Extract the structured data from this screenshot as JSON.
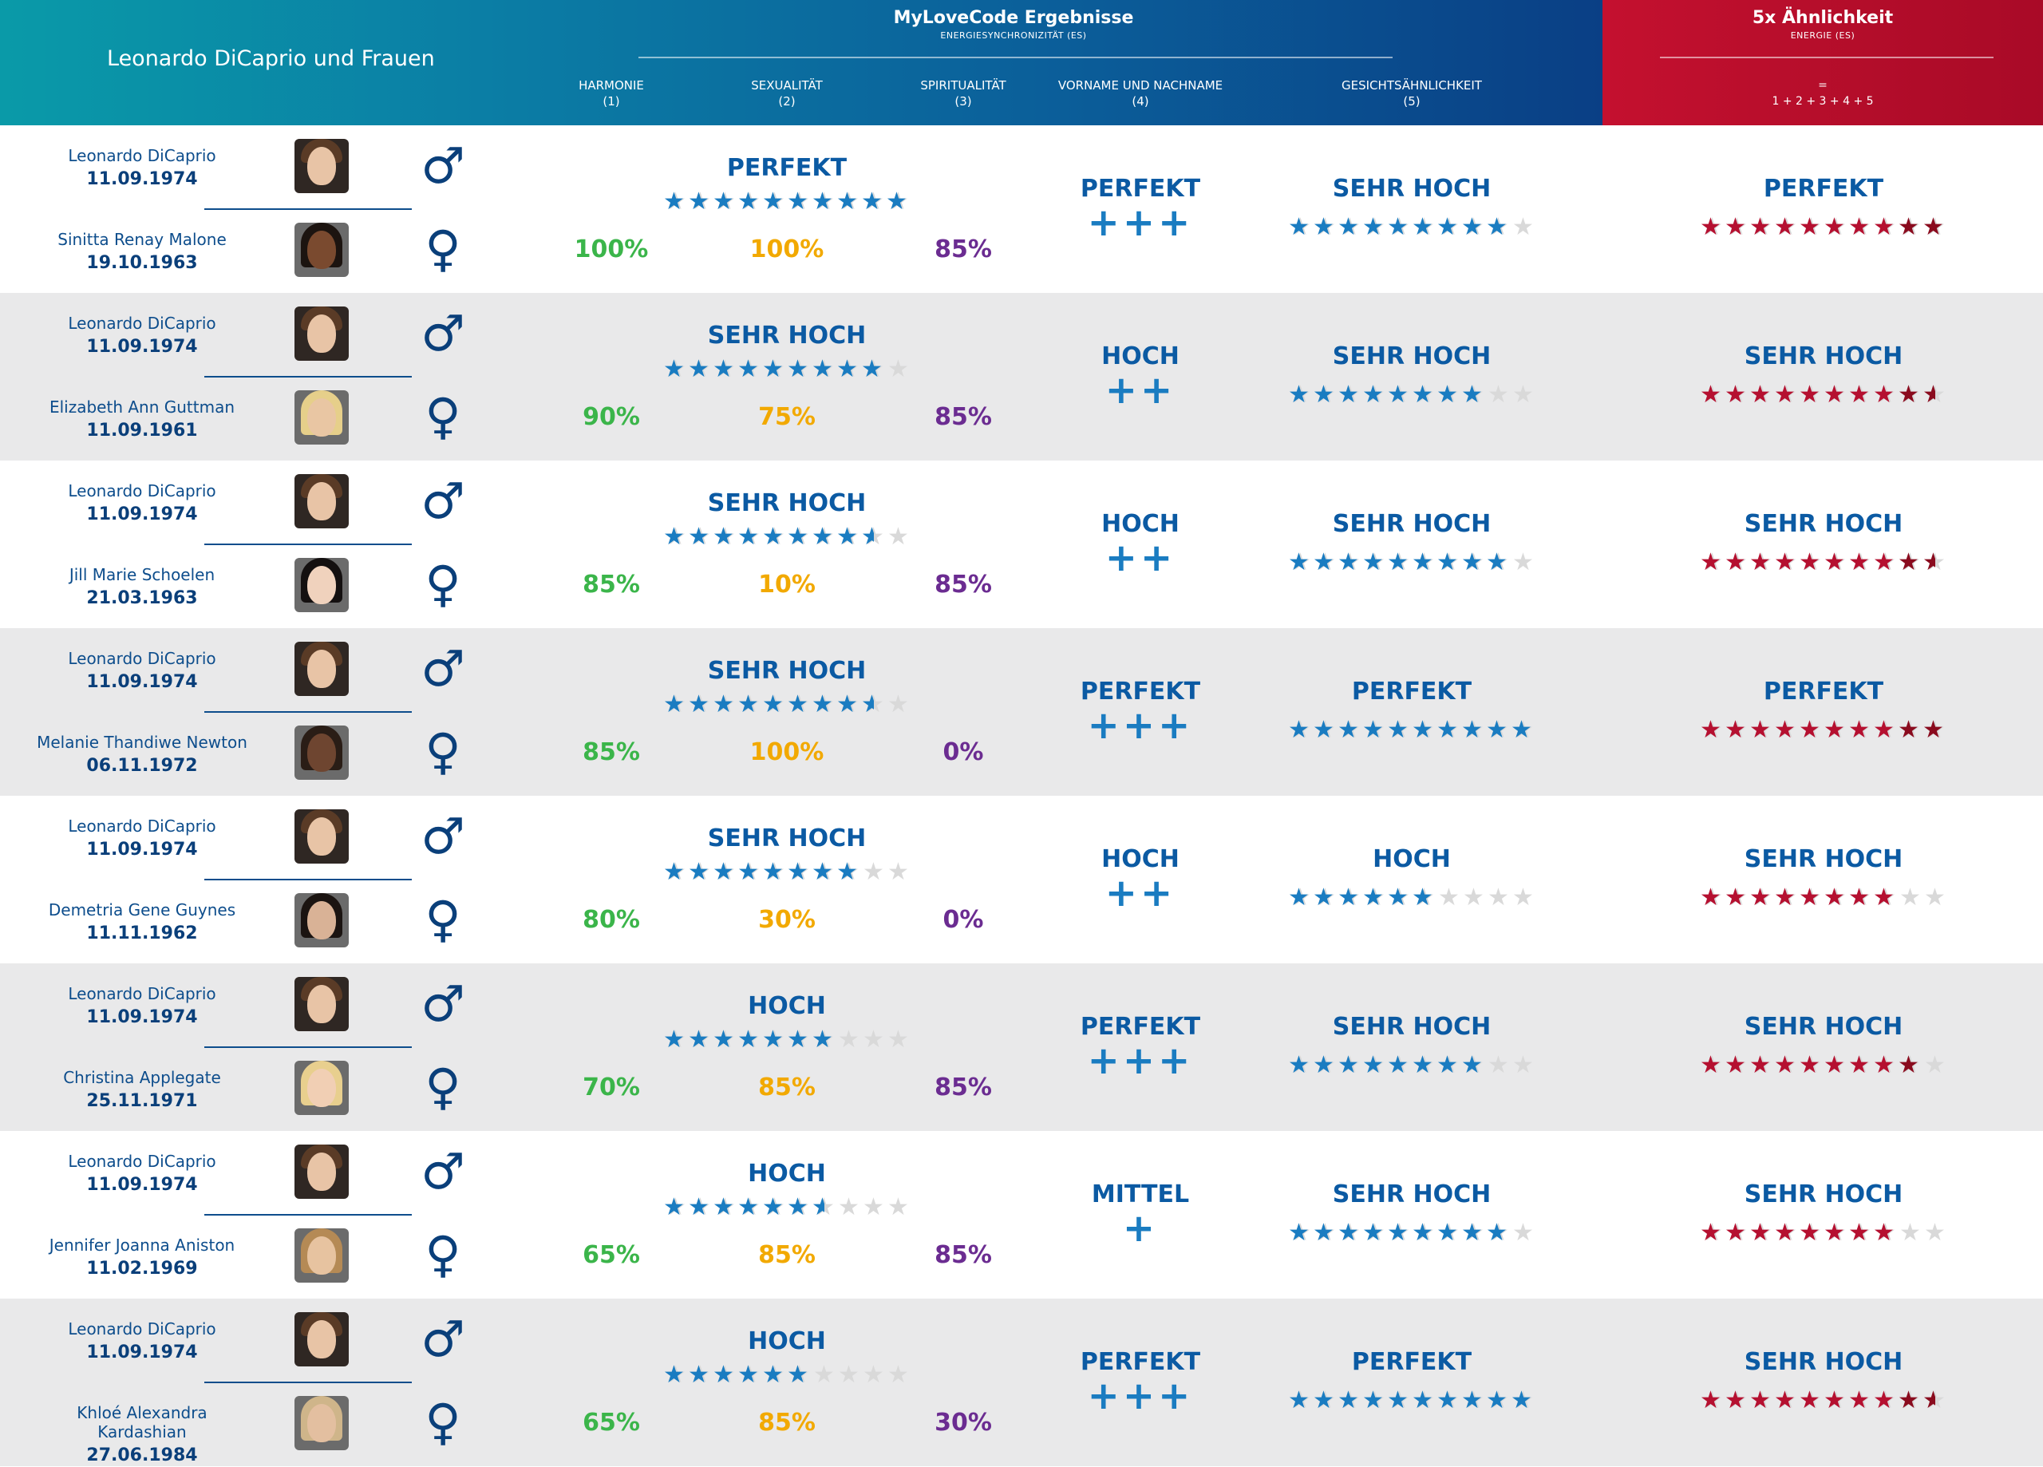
{
  "header": {
    "title": "Leonardo DiCaprio und Frauen",
    "results_title": "MyLoveCode Ergebnisse",
    "results_sub": "ENERGIESYNCHRONIZITÄT (ES)",
    "columns": [
      {
        "label": "HARMONIE",
        "num": "(1)"
      },
      {
        "label": "SEXUALITÄT",
        "num": "(2)"
      },
      {
        "label": "SPIRITUALITÄT",
        "num": "(3)"
      },
      {
        "label": "VORNAME UND NACHNAME",
        "num": "(4)"
      },
      {
        "label": "GESICHTSÄHNLICHKEIT",
        "num": "(5)"
      }
    ],
    "energy_title": "5x Ähnlichkeit",
    "energy_sub": "ENERGIE (ES)",
    "energy_eq": "=",
    "energy_formula": "1 + 2 + 3 + 4 + 5"
  },
  "colors": {
    "blue_star": "#1a7cc1",
    "red_star": "#b51030",
    "empty_star": "#d9d9d9",
    "harmony": "#3bb54a",
    "sexuality": "#f2a900",
    "spirituality": "#6b2c91",
    "header_blue": "#0b5f9a",
    "header_red": "#c4102f"
  },
  "icons": {
    "male": "male-symbol-icon",
    "female": "female-symbol-icon"
  },
  "chart_data": {
    "type": "table",
    "stars_max": 10,
    "rows": [
      {
        "man": "Leonardo DiCaprio",
        "man_date": "11.09.1974",
        "woman": "Sinitta Renay Malone",
        "woman_date": "19.10.1963",
        "es_rating": "PERFEKT",
        "es_stars": 10,
        "harmony": "100%",
        "sexuality": "100%",
        "spirituality": "85%",
        "name_rating": "PERFEKT",
        "name_plus": "+++",
        "face_rating": "SEHR HOCH",
        "face_stars": 9,
        "energy_rating": "PERFEKT",
        "energy_stars": 10
      },
      {
        "man": "Leonardo DiCaprio",
        "man_date": "11.09.1974",
        "woman": "Elizabeth Ann Guttman",
        "woman_date": "11.09.1961",
        "es_rating": "SEHR HOCH",
        "es_stars": 9,
        "harmony": "90%",
        "sexuality": "75%",
        "spirituality": "85%",
        "name_rating": "HOCH",
        "name_plus": "++",
        "face_rating": "SEHR HOCH",
        "face_stars": 8,
        "energy_rating": "SEHR HOCH",
        "energy_stars": 9.5
      },
      {
        "man": "Leonardo DiCaprio",
        "man_date": "11.09.1974",
        "woman": "Jill Marie Schoelen",
        "woman_date": "21.03.1963",
        "es_rating": "SEHR HOCH",
        "es_stars": 8.5,
        "harmony": "85%",
        "sexuality": "10%",
        "spirituality": "85%",
        "name_rating": "HOCH",
        "name_plus": "++",
        "face_rating": "SEHR HOCH",
        "face_stars": 9,
        "energy_rating": "SEHR HOCH",
        "energy_stars": 9.5
      },
      {
        "man": "Leonardo DiCaprio",
        "man_date": "11.09.1974",
        "woman": "Melanie Thandiwe Newton",
        "woman_date": "06.11.1972",
        "es_rating": "SEHR HOCH",
        "es_stars": 8.5,
        "harmony": "85%",
        "sexuality": "100%",
        "spirituality": "0%",
        "name_rating": "PERFEKT",
        "name_plus": "+++",
        "face_rating": "PERFEKT",
        "face_stars": 10,
        "energy_rating": "PERFEKT",
        "energy_stars": 10
      },
      {
        "man": "Leonardo DiCaprio",
        "man_date": "11.09.1974",
        "woman": "Demetria Gene Guynes",
        "woman_date": "11.11.1962",
        "es_rating": "SEHR HOCH",
        "es_stars": 8,
        "harmony": "80%",
        "sexuality": "30%",
        "spirituality": "0%",
        "name_rating": "HOCH",
        "name_plus": "++",
        "face_rating": "HOCH",
        "face_stars": 6,
        "energy_rating": "SEHR HOCH",
        "energy_stars": 8
      },
      {
        "man": "Leonardo DiCaprio",
        "man_date": "11.09.1974",
        "woman": "Christina Applegate",
        "woman_date": "25.11.1971",
        "es_rating": "HOCH",
        "es_stars": 7,
        "harmony": "70%",
        "sexuality": "85%",
        "spirituality": "85%",
        "name_rating": "PERFEKT",
        "name_plus": "+++",
        "face_rating": "SEHR HOCH",
        "face_stars": 8,
        "energy_rating": "SEHR HOCH",
        "energy_stars": 9
      },
      {
        "man": "Leonardo DiCaprio",
        "man_date": "11.09.1974",
        "woman": "Jennifer Joanna Aniston",
        "woman_date": "11.02.1969",
        "es_rating": "HOCH",
        "es_stars": 6.5,
        "harmony": "65%",
        "sexuality": "85%",
        "spirituality": "85%",
        "name_rating": "MITTEL",
        "name_plus": "+",
        "face_rating": "SEHR HOCH",
        "face_stars": 9,
        "energy_rating": "SEHR HOCH",
        "energy_stars": 8
      },
      {
        "man": "Leonardo DiCaprio",
        "man_date": "11.09.1974",
        "woman": "Khloé Alexandra Kardashian",
        "woman_date": "27.06.1984",
        "es_rating": "HOCH",
        "es_stars": 6,
        "harmony": "65%",
        "sexuality": "85%",
        "spirituality": "30%",
        "name_rating": "PERFEKT",
        "name_plus": "+++",
        "face_rating": "PERFEKT",
        "face_stars": 10,
        "energy_rating": "SEHR HOCH",
        "energy_stars": 9.5
      }
    ]
  }
}
